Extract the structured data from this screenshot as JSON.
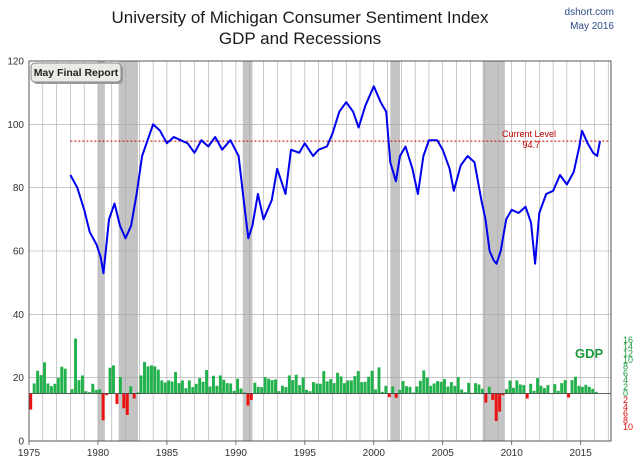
{
  "chart_data": {
    "type": "line",
    "title": "University of Michigan Consumer Sentiment Index",
    "subtitle": "GDP and Recessions",
    "source": "dshort.com",
    "date": "May 2016",
    "report_label": "May Final Report",
    "current_level_label": "Current Level",
    "current_level_value": "94.7",
    "current_level": 94.7,
    "gdp_label": "GDP",
    "xlim": [
      1975,
      2017.2
    ],
    "ylim": [
      0,
      120
    ],
    "x_ticks": [
      "1975",
      "1980",
      "1985",
      "1990",
      "1995",
      "2000",
      "2005",
      "2010",
      "2015"
    ],
    "y_ticks": [
      "0",
      "20",
      "40",
      "60",
      "80",
      "100",
      "120"
    ],
    "gdp_ticks_pos": [
      "16",
      "14",
      "12",
      "10",
      "8",
      "6",
      "4",
      "2",
      "0"
    ],
    "gdp_ticks_neg": [
      "2",
      "4",
      "6",
      "8",
      "10"
    ],
    "grid": true,
    "colors": {
      "sentiment": "#0000ee",
      "current_level": "#c00000",
      "gdp_positive": "#22b24c",
      "gdp_negative": "#ee1111",
      "recession": "#c4c4c4",
      "gdp_axis_positive": "#1a9a3a",
      "gdp_axis_negative": "#e01010"
    },
    "recessions": [
      [
        1980.0,
        1980.5
      ],
      [
        1981.5,
        1982.9
      ],
      [
        1990.5,
        1991.2
      ],
      [
        2001.2,
        2001.9
      ],
      [
        2007.9,
        2009.5
      ]
    ],
    "series": [
      {
        "name": "Consumer Sentiment",
        "x": [
          1978.0,
          1978.5,
          1979.0,
          1979.4,
          1979.9,
          1980.2,
          1980.4,
          1980.8,
          1981.2,
          1981.6,
          1982.0,
          1982.4,
          1982.8,
          1983.2,
          1983.6,
          1984.0,
          1984.5,
          1985.0,
          1985.5,
          1986.0,
          1986.5,
          1987.0,
          1987.5,
          1988.0,
          1988.5,
          1989.0,
          1989.6,
          1990.2,
          1990.6,
          1990.9,
          1991.2,
          1991.6,
          1992.0,
          1992.6,
          1993.0,
          1993.6,
          1994.0,
          1994.6,
          1995.0,
          1995.6,
          1996.0,
          1996.6,
          1997.0,
          1997.5,
          1998.0,
          1998.5,
          1998.9,
          1999.4,
          2000.0,
          2000.5,
          2000.9,
          2001.2,
          2001.6,
          2001.9,
          2002.3,
          2002.8,
          2003.2,
          2003.6,
          2004.0,
          2004.6,
          2005.0,
          2005.5,
          2005.8,
          2006.3,
          2006.8,
          2007.3,
          2007.8,
          2008.1,
          2008.4,
          2008.7,
          2008.9,
          2009.2,
          2009.6,
          2010.0,
          2010.5,
          2011.0,
          2011.4,
          2011.7,
          2012.0,
          2012.5,
          2013.0,
          2013.5,
          2014.0,
          2014.5,
          2014.9,
          2015.1,
          2015.5,
          2015.9,
          2016.2,
          2016.4
        ],
        "values": [
          84,
          80,
          73,
          66,
          62,
          58,
          53,
          70,
          75,
          68,
          64,
          68,
          78,
          90,
          95,
          100,
          98,
          94,
          96,
          95,
          94,
          91,
          95,
          93,
          96,
          92,
          95,
          90,
          75,
          64,
          68,
          78,
          70,
          76,
          86,
          78,
          92,
          91,
          94,
          90,
          92,
          93,
          97,
          104,
          107,
          104,
          99,
          106,
          112,
          107,
          104,
          88,
          82,
          90,
          93,
          86,
          78,
          90,
          95,
          95,
          92,
          86,
          79,
          87,
          90,
          88,
          76,
          70,
          60,
          57,
          56,
          60,
          70,
          73,
          72,
          74,
          69,
          56,
          72,
          78,
          79,
          84,
          81,
          85,
          93,
          98,
          94,
          91,
          90,
          94.7
        ]
      },
      {
        "name": "GDP",
        "x": [
          1975.0,
          1975.25,
          1975.5,
          1975.75,
          1976.0,
          1976.25,
          1976.5,
          1976.75,
          1977.0,
          1977.25,
          1977.5,
          1977.75,
          1978.0,
          1978.25,
          1978.5,
          1978.75,
          1979.0,
          1979.25,
          1979.5,
          1979.75,
          1980.0,
          1980.25,
          1980.5,
          1980.75,
          1981.0,
          1981.25,
          1981.5,
          1981.75,
          1982.0,
          1982.25,
          1982.5,
          1982.75,
          1983.0,
          1983.25,
          1983.5,
          1983.75,
          1984.0,
          1984.25,
          1984.5,
          1984.75,
          1985.0,
          1985.25,
          1985.5,
          1985.75,
          1986.0,
          1986.25,
          1986.5,
          1986.75,
          1987.0,
          1987.25,
          1987.5,
          1987.75,
          1988.0,
          1988.25,
          1988.5,
          1988.75,
          1989.0,
          1989.25,
          1989.5,
          1989.75,
          1990.0,
          1990.25,
          1990.5,
          1990.75,
          1991.0,
          1991.25,
          1991.5,
          1991.75,
          1992.0,
          1992.25,
          1992.5,
          1992.75,
          1993.0,
          1993.25,
          1993.5,
          1993.75,
          1994.0,
          1994.25,
          1994.5,
          1994.75,
          1995.0,
          1995.25,
          1995.5,
          1995.75,
          1996.0,
          1996.25,
          1996.5,
          1996.75,
          1997.0,
          1997.25,
          1997.5,
          1997.75,
          1998.0,
          1998.25,
          1998.5,
          1998.75,
          1999.0,
          1999.25,
          1999.5,
          1999.75,
          2000.0,
          2000.25,
          2000.5,
          2000.75,
          2001.0,
          2001.25,
          2001.5,
          2001.75,
          2002.0,
          2002.25,
          2002.5,
          2002.75,
          2003.0,
          2003.25,
          2003.5,
          2003.75,
          2004.0,
          2004.25,
          2004.5,
          2004.75,
          2005.0,
          2005.25,
          2005.5,
          2005.75,
          2006.0,
          2006.25,
          2006.5,
          2006.75,
          2007.0,
          2007.25,
          2007.5,
          2007.75,
          2008.0,
          2008.25,
          2008.5,
          2008.75,
          2009.0,
          2009.25,
          2009.5,
          2009.75,
          2010.0,
          2010.25,
          2010.5,
          2010.75,
          2011.0,
          2011.25,
          2011.5,
          2011.75,
          2012.0,
          2012.25,
          2012.5,
          2012.75,
          2013.0,
          2013.25,
          2013.5,
          2013.75,
          2014.0,
          2014.25,
          2014.5,
          2014.75,
          2015.0,
          2015.25,
          2015.5,
          2015.75,
          2016.0
        ],
        "values": [
          -4.8,
          3.0,
          6.8,
          5.5,
          9.3,
          3.0,
          2.2,
          2.9,
          4.7,
          8.0,
          7.4,
          0.0,
          1.3,
          16.4,
          4.0,
          5.4,
          0.7,
          0.4,
          2.9,
          1.1,
          1.3,
          -8.0,
          -0.5,
          7.7,
          8.4,
          -3.1,
          4.9,
          -4.4,
          -6.4,
          2.2,
          -1.5,
          0.3,
          5.4,
          9.4,
          8.1,
          8.4,
          8.1,
          7.1,
          3.9,
          3.3,
          3.9,
          3.6,
          6.4,
          3.1,
          3.9,
          1.6,
          3.9,
          1.9,
          2.9,
          4.6,
          3.5,
          7.0,
          2.1,
          5.3,
          2.3,
          5.4,
          4.1,
          3.1,
          3.0,
          0.8,
          4.4,
          1.5,
          0.3,
          -3.6,
          -1.9,
          3.2,
          2.0,
          1.9,
          4.9,
          4.4,
          4.0,
          4.2,
          0.7,
          2.3,
          1.9,
          5.4,
          4.0,
          5.6,
          2.5,
          4.8,
          1.1,
          0.7,
          3.4,
          3.0,
          2.9,
          6.7,
          3.6,
          4.3,
          3.1,
          6.2,
          5.1,
          3.1,
          3.9,
          3.9,
          5.2,
          6.7,
          3.4,
          3.5,
          5.0,
          6.8,
          1.2,
          7.8,
          0.5,
          2.3,
          -1.1,
          2.1,
          -1.3,
          1.1,
          3.7,
          2.2,
          2.0,
          0.3,
          2.1,
          3.8,
          6.9,
          4.8,
          2.3,
          3.0,
          3.7,
          3.5,
          4.3,
          2.1,
          3.4,
          2.3,
          4.9,
          1.2,
          0.4,
          3.2,
          0.2,
          3.1,
          2.7,
          1.4,
          -2.7,
          2.0,
          -1.9,
          -8.2,
          -5.4,
          -0.5,
          1.3,
          3.9,
          1.7,
          3.9,
          2.7,
          2.5,
          -1.5,
          2.9,
          0.8,
          4.6,
          2.3,
          1.6,
          2.5,
          0.1,
          2.8,
          0.8,
          3.1,
          4.0,
          -1.2,
          4.0,
          5.0,
          2.3,
          2.0,
          2.6,
          2.0,
          1.4,
          0.5
        ]
      }
    ]
  }
}
